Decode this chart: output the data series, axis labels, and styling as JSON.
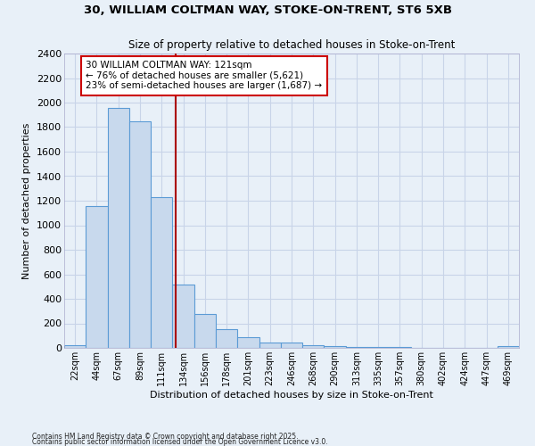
{
  "title1": "30, WILLIAM COLTMAN WAY, STOKE-ON-TRENT, ST6 5XB",
  "title2": "Size of property relative to detached houses in Stoke-on-Trent",
  "xlabel": "Distribution of detached houses by size in Stoke-on-Trent",
  "ylabel": "Number of detached properties",
  "categories": [
    "22sqm",
    "44sqm",
    "67sqm",
    "89sqm",
    "111sqm",
    "134sqm",
    "156sqm",
    "178sqm",
    "201sqm",
    "223sqm",
    "246sqm",
    "268sqm",
    "290sqm",
    "313sqm",
    "335sqm",
    "357sqm",
    "380sqm",
    "402sqm",
    "424sqm",
    "447sqm",
    "469sqm"
  ],
  "values": [
    25,
    1160,
    1960,
    1850,
    1230,
    515,
    275,
    150,
    90,
    45,
    42,
    20,
    18,
    8,
    5,
    4,
    3,
    2,
    1,
    1,
    18
  ],
  "bar_color": "#c8d9ed",
  "bar_edge_color": "#5b9bd5",
  "vline_x": 4.65,
  "vline_color": "#aa0000",
  "annotation_text": "30 WILLIAM COLTMAN WAY: 121sqm\n← 76% of detached houses are smaller (5,621)\n23% of semi-detached houses are larger (1,687) →",
  "annotation_box_facecolor": "#ffffff",
  "annotation_border_color": "#cc0000",
  "ylim": [
    0,
    2400
  ],
  "yticks": [
    0,
    200,
    400,
    600,
    800,
    1000,
    1200,
    1400,
    1600,
    1800,
    2000,
    2200,
    2400
  ],
  "bg_color": "#e8f0f8",
  "grid_color": "#c8d4e8",
  "footer1": "Contains HM Land Registry data © Crown copyright and database right 2025.",
  "footer2": "Contains public sector information licensed under the Open Government Licence v3.0."
}
